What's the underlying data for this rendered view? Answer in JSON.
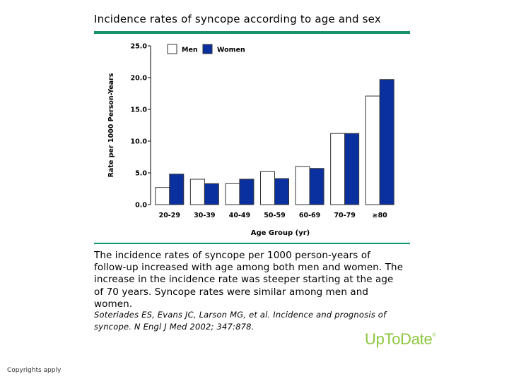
{
  "page": {
    "title": "Incidence rates of syncope according to age and sex",
    "caption": "The incidence rates of syncope per 1000 person-years of follow-up increased with age among both men and women. The increase in the incidence rate was steeper starting at the age of 70 years. Syncope rates were similar among men and women.",
    "citation": "Soteriades ES, Evans JC, Larson MG, et al. Incidence and prognosis of syncope. N Engl J Med 2002; 347:878.",
    "brand": "UpToDate",
    "brand_mark": "®",
    "copyright": "Copyrights apply"
  },
  "colors": {
    "accent_rule": "#16936b",
    "men_fill": "#ffffff",
    "women_fill": "#0a2f9e",
    "bar_stroke": "#333333",
    "brand": "#8cc63f"
  },
  "chart_data": {
    "type": "bar",
    "title": "",
    "xlabel": "Age Group (yr)",
    "ylabel": "Rate per 1000 Person-Years",
    "categories": [
      "20-29",
      "30-39",
      "40-49",
      "50-59",
      "60-69",
      "70-79",
      "≥80"
    ],
    "series": [
      {
        "name": "Men",
        "values": [
          2.7,
          4.0,
          3.3,
          5.2,
          6.0,
          11.2,
          17.1
        ]
      },
      {
        "name": "Women",
        "values": [
          4.8,
          3.3,
          4.0,
          4.1,
          5.7,
          11.2,
          19.7
        ]
      }
    ],
    "ylim": [
      0,
      25
    ],
    "yticks": [
      "0.0",
      "5.0",
      "10.0",
      "15.0",
      "20.0",
      "25.0"
    ],
    "grid": false,
    "legend_position": "top-left"
  }
}
